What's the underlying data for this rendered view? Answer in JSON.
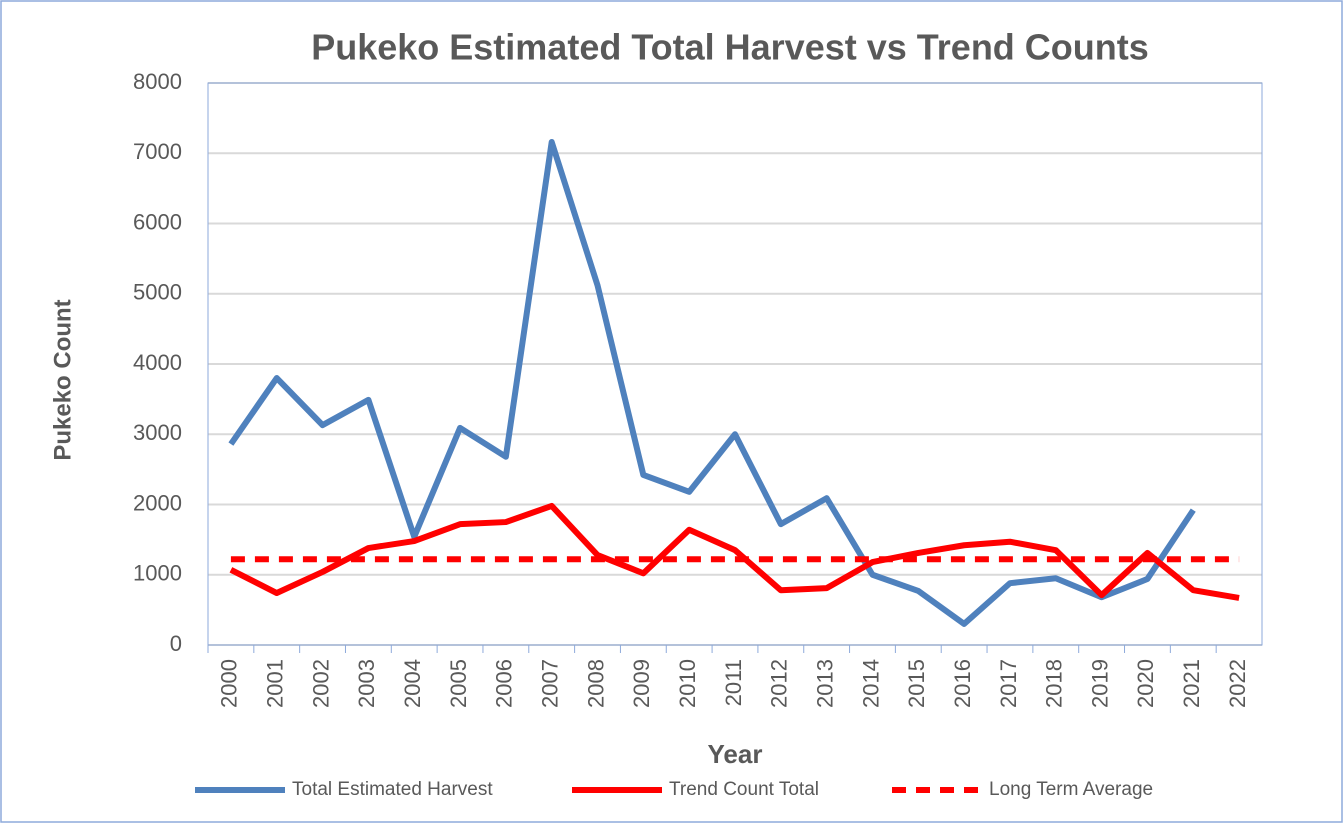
{
  "chart_data": {
    "type": "line",
    "title": "Pukeko Estimated Total Harvest vs Trend Counts",
    "x_label": "Year",
    "y_label": "Pukeko Count",
    "categories": [
      "2000",
      "2001",
      "2002",
      "2003",
      "2004",
      "2005",
      "2006",
      "2007",
      "2008",
      "2009",
      "2010",
      "2011",
      "2012",
      "2013",
      "2014",
      "2015",
      "2016",
      "2017",
      "2018",
      "2019",
      "2020",
      "2021",
      "2022"
    ],
    "series": [
      {
        "name": "Total Estimated Harvest",
        "color": "#4f81bd",
        "dashed": false,
        "values": [
          2860,
          3800,
          3130,
          3490,
          1540,
          3090,
          2680,
          7160,
          5120,
          2420,
          2180,
          3000,
          1720,
          2090,
          1000,
          770,
          300,
          880,
          950,
          680,
          940,
          1920,
          null
        ]
      },
      {
        "name": "Trend Count Total",
        "color": "#ff0000",
        "dashed": false,
        "values": [
          1070,
          740,
          1040,
          1380,
          1480,
          1720,
          1750,
          1980,
          1280,
          1020,
          1640,
          1350,
          780,
          810,
          1180,
          1310,
          1420,
          1470,
          1350,
          710,
          1310,
          780,
          670
        ]
      },
      {
        "name": "Long Term Average",
        "color": "#ff0000",
        "dashed": true,
        "values": [
          1220,
          1220,
          1220,
          1220,
          1220,
          1220,
          1220,
          1220,
          1220,
          1220,
          1220,
          1220,
          1220,
          1220,
          1220,
          1220,
          1220,
          1220,
          1220,
          1220,
          1220,
          1220,
          1220
        ]
      }
    ],
    "ylim": [
      0,
      8000
    ],
    "yticks": [
      0,
      1000,
      2000,
      3000,
      4000,
      5000,
      6000,
      7000,
      8000
    ],
    "grid": true,
    "legend": "bottom"
  }
}
